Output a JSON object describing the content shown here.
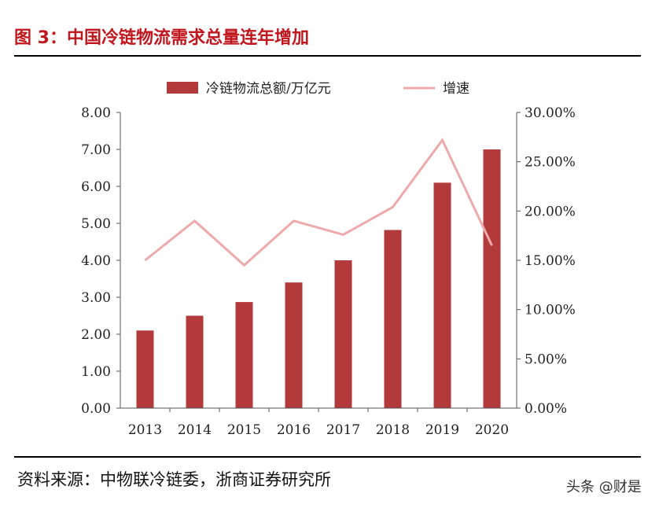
{
  "figure": {
    "title": "图 3：中国冷链物流需求总量连年增加",
    "source": "资料来源：中物联冷链委，浙商证券研究所",
    "watermark": "头条 @财是"
  },
  "chart_data": {
    "type": "bar",
    "categories": [
      "2013",
      "2014",
      "2015",
      "2016",
      "2017",
      "2018",
      "2019",
      "2020"
    ],
    "series": [
      {
        "name": "冷链物流总额/万亿元",
        "type": "bar",
        "axis": "left",
        "values": [
          2.1,
          2.5,
          2.87,
          3.4,
          4.0,
          4.82,
          6.1,
          7.0
        ]
      },
      {
        "name": "增速",
        "type": "line",
        "axis": "right",
        "values": [
          15.0,
          19.0,
          14.5,
          19.0,
          17.6,
          20.4,
          27.2,
          16.5
        ]
      }
    ],
    "y_left": {
      "lim": [
        0,
        8
      ],
      "ticks": [
        "0.00",
        "1.00",
        "2.00",
        "3.00",
        "4.00",
        "5.00",
        "6.00",
        "7.00",
        "8.00"
      ]
    },
    "y_right": {
      "lim": [
        0,
        30
      ],
      "ticks": [
        "0.00%",
        "5.00%",
        "10.00%",
        "15.00%",
        "20.00%",
        "25.00%",
        "30.00%"
      ]
    },
    "legend_position": "top-center",
    "grid": false,
    "colors": {
      "bar": "#b33a3a",
      "line": "#ecaaaa",
      "title": "#c0161d"
    }
  }
}
